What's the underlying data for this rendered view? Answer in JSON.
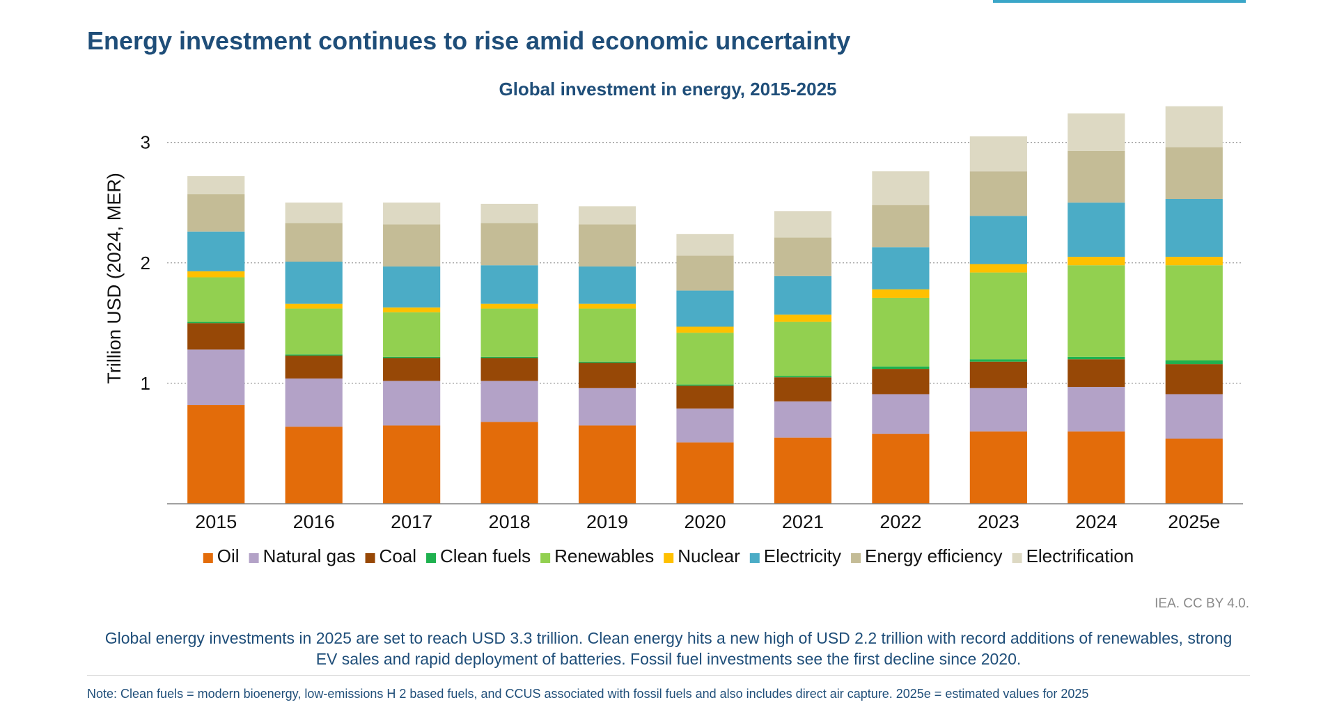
{
  "page": {
    "title": "Energy investment continues to rise amid economic uncertainty",
    "source": "IEA. CC BY 4.0.",
    "summary": "Global energy investments in 2025 are set to reach USD 3.3 trillion. Clean energy hits a new high of USD 2.2 trillion with record additions of renewables, strong EV sales and rapid deployment of batteries. Fossil fuel investments see the first decline since 2020.",
    "note": "Note: Clean fuels = modern bioenergy, low-emissions H 2 based fuels, and CCUS associated with fossil fuels and also includes direct air capture. 2025e = estimated values for 2025"
  },
  "colors": {
    "title": "#1f4e79",
    "accent": "#3aa6c8"
  },
  "chart_data": {
    "type": "bar",
    "stacked": true,
    "title": "Global investment in energy, 2015-2025",
    "xlabel": "",
    "ylabel": "Trillion USD (2024, MER)",
    "ylim": [
      0,
      3.2
    ],
    "yticks": [
      1,
      2,
      3
    ],
    "grid": "dotted horizontal",
    "legend_position": "bottom",
    "categories": [
      "2015",
      "2016",
      "2017",
      "2018",
      "2019",
      "2020",
      "2021",
      "2022",
      "2023",
      "2024",
      "2025e"
    ],
    "series": [
      {
        "name": "Oil",
        "color": "#e36c0a",
        "values": [
          0.82,
          0.64,
          0.65,
          0.68,
          0.65,
          0.51,
          0.55,
          0.58,
          0.6,
          0.6,
          0.54
        ]
      },
      {
        "name": "Natural gas",
        "color": "#b3a2c7",
        "values": [
          0.46,
          0.4,
          0.37,
          0.34,
          0.31,
          0.28,
          0.3,
          0.33,
          0.36,
          0.37,
          0.37
        ]
      },
      {
        "name": "Coal",
        "color": "#974806",
        "values": [
          0.22,
          0.19,
          0.19,
          0.19,
          0.21,
          0.19,
          0.2,
          0.21,
          0.22,
          0.23,
          0.25
        ]
      },
      {
        "name": "Clean fuels",
        "color": "#1fb14f",
        "values": [
          0.01,
          0.01,
          0.01,
          0.01,
          0.01,
          0.01,
          0.01,
          0.02,
          0.02,
          0.02,
          0.03
        ]
      },
      {
        "name": "Renewables",
        "color": "#92d050",
        "values": [
          0.37,
          0.38,
          0.37,
          0.4,
          0.44,
          0.43,
          0.45,
          0.57,
          0.72,
          0.76,
          0.79
        ]
      },
      {
        "name": "Nuclear",
        "color": "#ffc000",
        "values": [
          0.05,
          0.04,
          0.04,
          0.04,
          0.04,
          0.05,
          0.06,
          0.07,
          0.07,
          0.07,
          0.07
        ]
      },
      {
        "name": "Electricity",
        "color": "#4bacc6",
        "values": [
          0.33,
          0.35,
          0.34,
          0.32,
          0.31,
          0.3,
          0.32,
          0.35,
          0.4,
          0.45,
          0.48
        ]
      },
      {
        "name": "Energy efficiency",
        "color": "#c4bc96",
        "values": [
          0.31,
          0.32,
          0.35,
          0.35,
          0.35,
          0.29,
          0.32,
          0.35,
          0.37,
          0.43,
          0.43
        ]
      },
      {
        "name": "Electrification",
        "color": "#ddd9c3",
        "values": [
          0.15,
          0.17,
          0.18,
          0.16,
          0.15,
          0.18,
          0.22,
          0.28,
          0.29,
          0.31,
          0.34
        ]
      }
    ]
  }
}
